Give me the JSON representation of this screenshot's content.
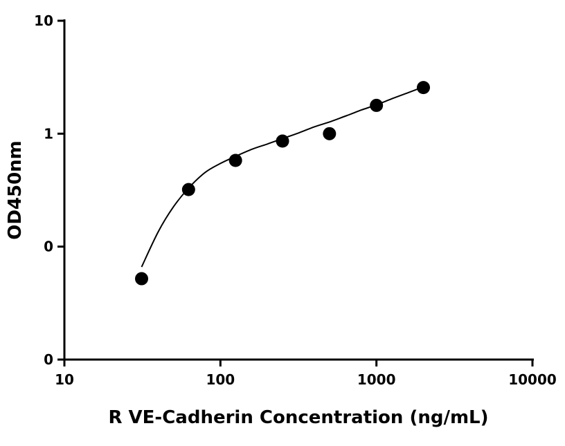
{
  "chart_data": {
    "type": "scatter",
    "title": "",
    "xlabel": "R VE-Cadherin Concentration (ng/mL)",
    "ylabel": "OD450nm",
    "x_scale": "log",
    "y_scale": "log",
    "xlim": [
      10,
      10000
    ],
    "ylim": [
      0.01,
      10
    ],
    "x_ticks": [
      {
        "value": 10,
        "label": "10"
      },
      {
        "value": 100,
        "label": "100"
      },
      {
        "value": 1000,
        "label": "1000"
      },
      {
        "value": 10000,
        "label": "10000"
      }
    ],
    "y_ticks": [
      {
        "value": 0.01,
        "label": "0"
      },
      {
        "value": 0.1,
        "label": "0"
      },
      {
        "value": 1,
        "label": "1"
      },
      {
        "value": 10,
        "label": "10"
      }
    ],
    "grid": false,
    "legend": "none",
    "series": [
      {
        "x": [
          31.25,
          62.5,
          125,
          250,
          500,
          1000,
          2000
        ],
        "y": [
          0.052,
          0.32,
          0.58,
          0.86,
          1.0,
          1.78,
          2.56
        ]
      }
    ],
    "fit_curve": {
      "x": [
        31.25,
        40,
        50,
        62.5,
        80,
        100,
        125,
        160,
        200,
        250,
        320,
        400,
        500,
        640,
        800,
        1000,
        1280,
        1600,
        2000
      ],
      "y": [
        0.066,
        0.136,
        0.225,
        0.33,
        0.455,
        0.545,
        0.63,
        0.73,
        0.81,
        0.905,
        1.02,
        1.15,
        1.27,
        1.44,
        1.62,
        1.8,
        2.06,
        2.31,
        2.6
      ]
    },
    "colors": {
      "axis": "#000000",
      "marker": "#000000",
      "curve": "#000000"
    }
  }
}
